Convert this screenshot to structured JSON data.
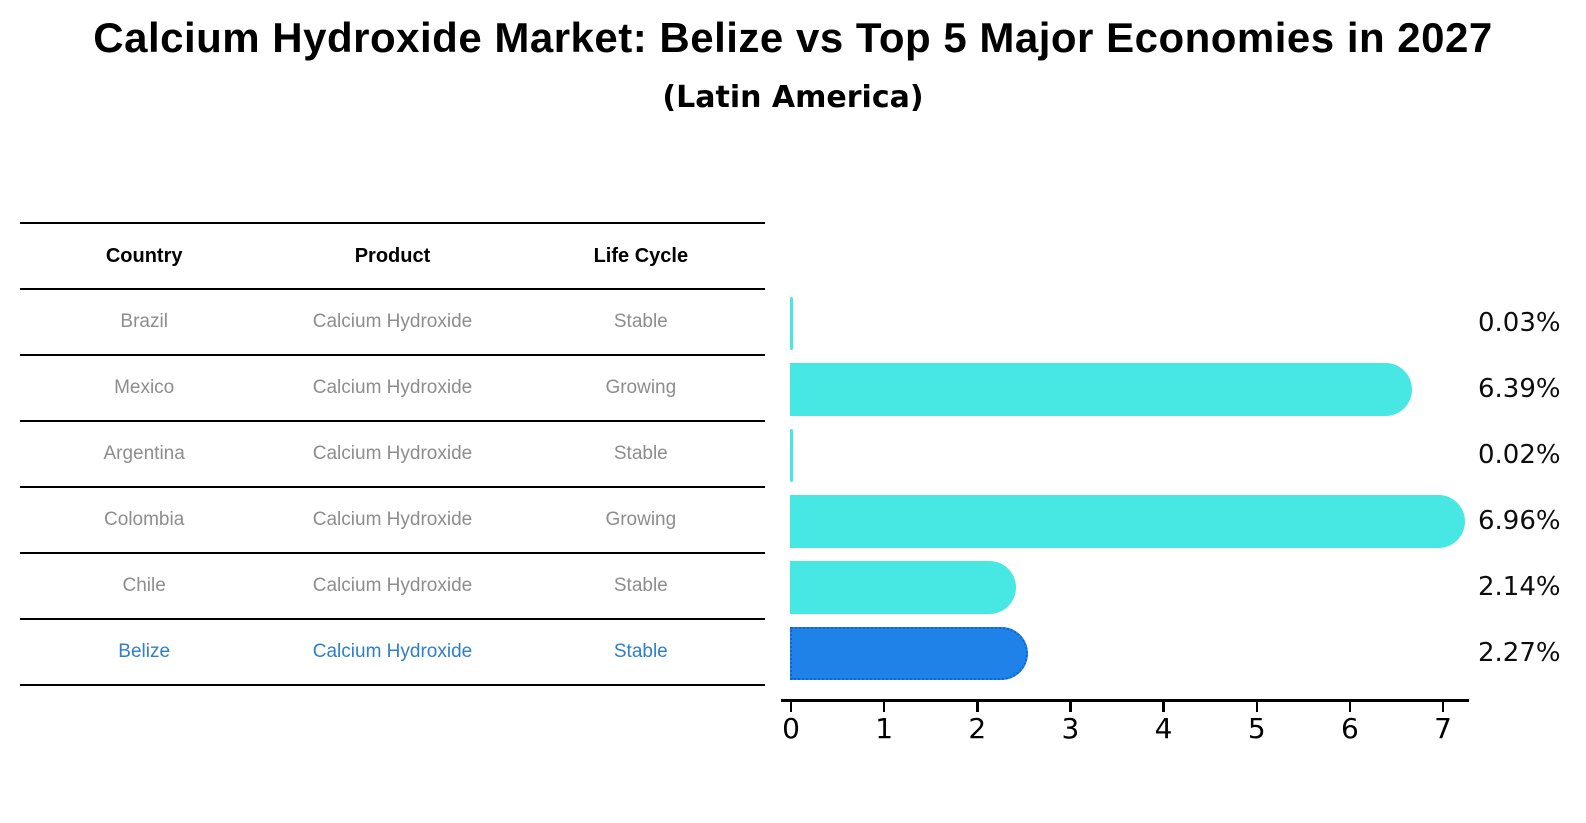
{
  "title": "Calcium Hydroxide Market: Belize vs Top 5 Major Economies in 2027",
  "subtitle": "(Latin America)",
  "table": {
    "headers": [
      "Country",
      "Product",
      "Life Cycle"
    ]
  },
  "rows": [
    {
      "country": "Brazil",
      "product": "Calcium Hydroxide",
      "life_cycle": "Stable",
      "value": 0.03,
      "label": "0.03%",
      "highlight": false
    },
    {
      "country": "Mexico",
      "product": "Calcium Hydroxide",
      "life_cycle": "Growing",
      "value": 6.39,
      "label": "6.39%",
      "highlight": false
    },
    {
      "country": "Argentina",
      "product": "Calcium Hydroxide",
      "life_cycle": "Stable",
      "value": 0.02,
      "label": "0.02%",
      "highlight": false
    },
    {
      "country": "Colombia",
      "product": "Calcium Hydroxide",
      "life_cycle": "Growing",
      "value": 6.96,
      "label": "6.96%",
      "highlight": false
    },
    {
      "country": "Chile",
      "product": "Calcium Hydroxide",
      "life_cycle": "Stable",
      "value": 2.14,
      "label": "2.14%",
      "highlight": false
    },
    {
      "country": "Belize",
      "product": "Calcium Hydroxide",
      "life_cycle": "Stable",
      "value": 2.27,
      "label": "2.27%",
      "highlight": true
    }
  ],
  "chart_data": {
    "type": "bar",
    "orientation": "horizontal",
    "title": "Calcium Hydroxide Market: Belize vs Top 5 Major Economies in 2027",
    "subtitle": "(Latin America)",
    "categories": [
      "Brazil",
      "Mexico",
      "Argentina",
      "Colombia",
      "Chile",
      "Belize"
    ],
    "values": [
      0.03,
      6.39,
      0.02,
      6.96,
      2.14,
      2.27
    ],
    "value_labels": [
      "0.03%",
      "6.39%",
      "0.02%",
      "6.96%",
      "2.14%",
      "2.27%"
    ],
    "xlabel": "",
    "ylabel": "",
    "xlim": [
      0,
      7.3
    ],
    "xticks": [
      0,
      1,
      2,
      3,
      4,
      5,
      6,
      7
    ],
    "grid": false,
    "legend": false,
    "bar_color": "#47e8e4",
    "highlight_color": "#1e82e8",
    "highlight_border_color": "#0f63cd",
    "highlight_index": 5
  },
  "colors": {
    "bar_cyan": "#47e8e4",
    "bar_blue": "#1e82e8",
    "highlight_text": "#2e7fc9",
    "muted_text": "#8d8d8d",
    "axis": "#000000"
  }
}
